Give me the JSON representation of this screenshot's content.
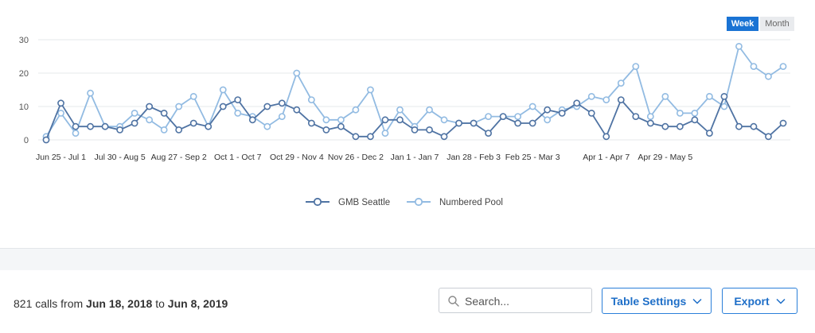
{
  "toggle": {
    "week": "Week",
    "month": "Month",
    "selected": "Week"
  },
  "chart_data": {
    "type": "line",
    "ylim": [
      0,
      30
    ],
    "yticks": [
      "0",
      "10",
      "20",
      "30"
    ],
    "grid": true,
    "legend_placement": "bottom-center",
    "x_tick_labels": [
      "Jun 25 - Jul 1",
      "Jul 30 - Aug 5",
      "Aug 27 - Sep 2",
      "Oct 1 - Oct 7",
      "Oct 29 - Nov 4",
      "Nov 26 - Dec 2",
      "Jan 1 - Jan 7",
      "Jan 28 - Feb 3",
      "Feb 25 - Mar 3",
      "Apr 1 - Apr 7",
      "Apr 29 - May 5"
    ],
    "x_tick_indices": [
      1,
      5,
      9,
      13,
      17,
      21,
      25,
      29,
      33,
      38,
      42
    ],
    "series": [
      {
        "name": "GMB Seattle",
        "color": "#4f73a3",
        "values": [
          0,
          11,
          4,
          4,
          4,
          3,
          5,
          10,
          8,
          3,
          5,
          4,
          10,
          12,
          6,
          10,
          11,
          9,
          5,
          3,
          4,
          1,
          1,
          6,
          6,
          3,
          3,
          1,
          5,
          5,
          2,
          7,
          5,
          5,
          9,
          8,
          11,
          8,
          1,
          12,
          7,
          5,
          4,
          4,
          6,
          2,
          13,
          4,
          4,
          1,
          5
        ]
      },
      {
        "name": "Numbered Pool",
        "color": "#92bbe2",
        "values": [
          1,
          8,
          2,
          14,
          4,
          4,
          8,
          6,
          3,
          10,
          13,
          4,
          15,
          8,
          7,
          4,
          7,
          20,
          12,
          6,
          6,
          9,
          15,
          2,
          9,
          4,
          9,
          6,
          5,
          5,
          7,
          7,
          7,
          10,
          6,
          9,
          10,
          13,
          12,
          17,
          22,
          7,
          13,
          8,
          8,
          13,
          10,
          28,
          22,
          19,
          22
        ]
      }
    ]
  },
  "footer": {
    "calls_prefix": "821 calls from ",
    "date_from": "Jun 18, 2018",
    "calls_mid": " to ",
    "date_to": "Jun 8, 2019",
    "search_placeholder": "Search...",
    "table_settings_label": "Table Settings",
    "export_label": "Export"
  },
  "icons": {
    "search": "search-icon",
    "chevron": "chevron-down-icon"
  }
}
